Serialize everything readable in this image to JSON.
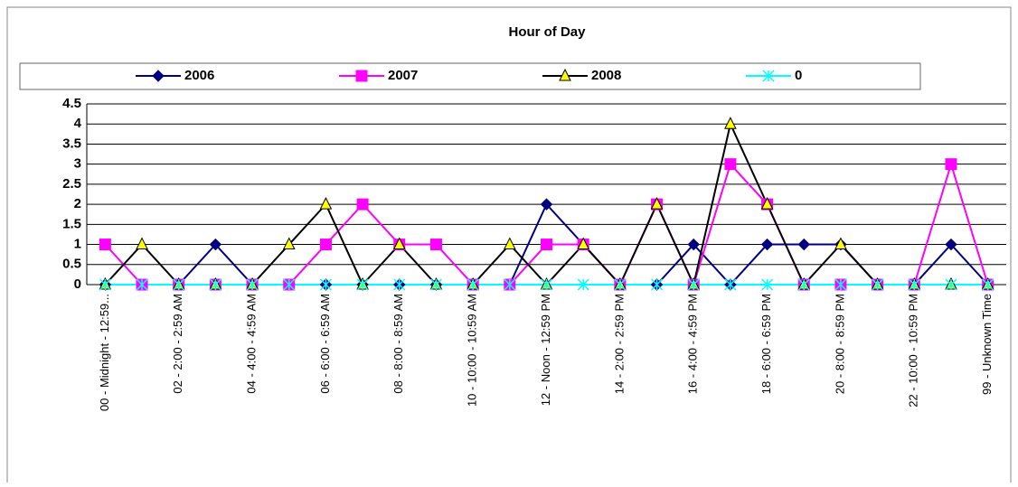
{
  "chart_data": {
    "type": "line",
    "title": "Hour of Day",
    "categories": [
      "00 - Midnight - 12:59...",
      null,
      "02 - 2:00 - 2:59 AM",
      null,
      "04 - 4:00 - 4:59 AM",
      null,
      "06 - 6:00 - 6:59 AM",
      null,
      "08 - 8:00 - 8:59 AM",
      null,
      "10 - 10:00 - 10:59 AM",
      null,
      "12 - Noon - 12:59 PM",
      null,
      "14 - 2:00 - 2:59 PM",
      null,
      "16 - 4:00 - 4:59 PM",
      null,
      "18 - 6:00 - 6:59 PM",
      null,
      "20 - 8:00 - 8:59 PM",
      null,
      "22 - 10:00 - 10:59 PM",
      null,
      "99 - Unknown Time"
    ],
    "series": [
      {
        "name": "2006",
        "color": "#000080",
        "marker": "diamond",
        "values": [
          0,
          0,
          0,
          1,
          0,
          0,
          0,
          0,
          0,
          0,
          0,
          0,
          2,
          1,
          0,
          0,
          1,
          0,
          1,
          1,
          1,
          0,
          0,
          1,
          0
        ]
      },
      {
        "name": "2007",
        "color": "#ff00ff",
        "marker": "square",
        "values": [
          1,
          0,
          0,
          0,
          0,
          0,
          1,
          2,
          1,
          1,
          0,
          0,
          1,
          1,
          0,
          2,
          0,
          3,
          2,
          0,
          0,
          0,
          0,
          3,
          0
        ]
      },
      {
        "name": "2008",
        "color": "#000000",
        "marker": "triangle",
        "values": [
          0,
          1,
          0,
          0,
          0,
          1,
          2,
          0,
          1,
          0,
          0,
          1,
          0,
          1,
          0,
          2,
          0,
          4,
          2,
          0,
          1,
          0,
          0,
          0,
          0
        ]
      },
      {
        "name": "0",
        "color": "#00ffff",
        "marker": "star",
        "values": [
          0,
          0,
          0,
          0,
          0,
          0,
          0,
          0,
          0,
          0,
          0,
          0,
          0,
          0,
          0,
          0,
          0,
          0,
          0,
          0,
          0,
          0,
          0,
          0,
          0
        ]
      }
    ],
    "ylim": [
      0,
      4.5
    ],
    "yticks": [
      0,
      0.5,
      1,
      1.5,
      2,
      2.5,
      3,
      3.5,
      4,
      4.5
    ],
    "grid": true
  }
}
